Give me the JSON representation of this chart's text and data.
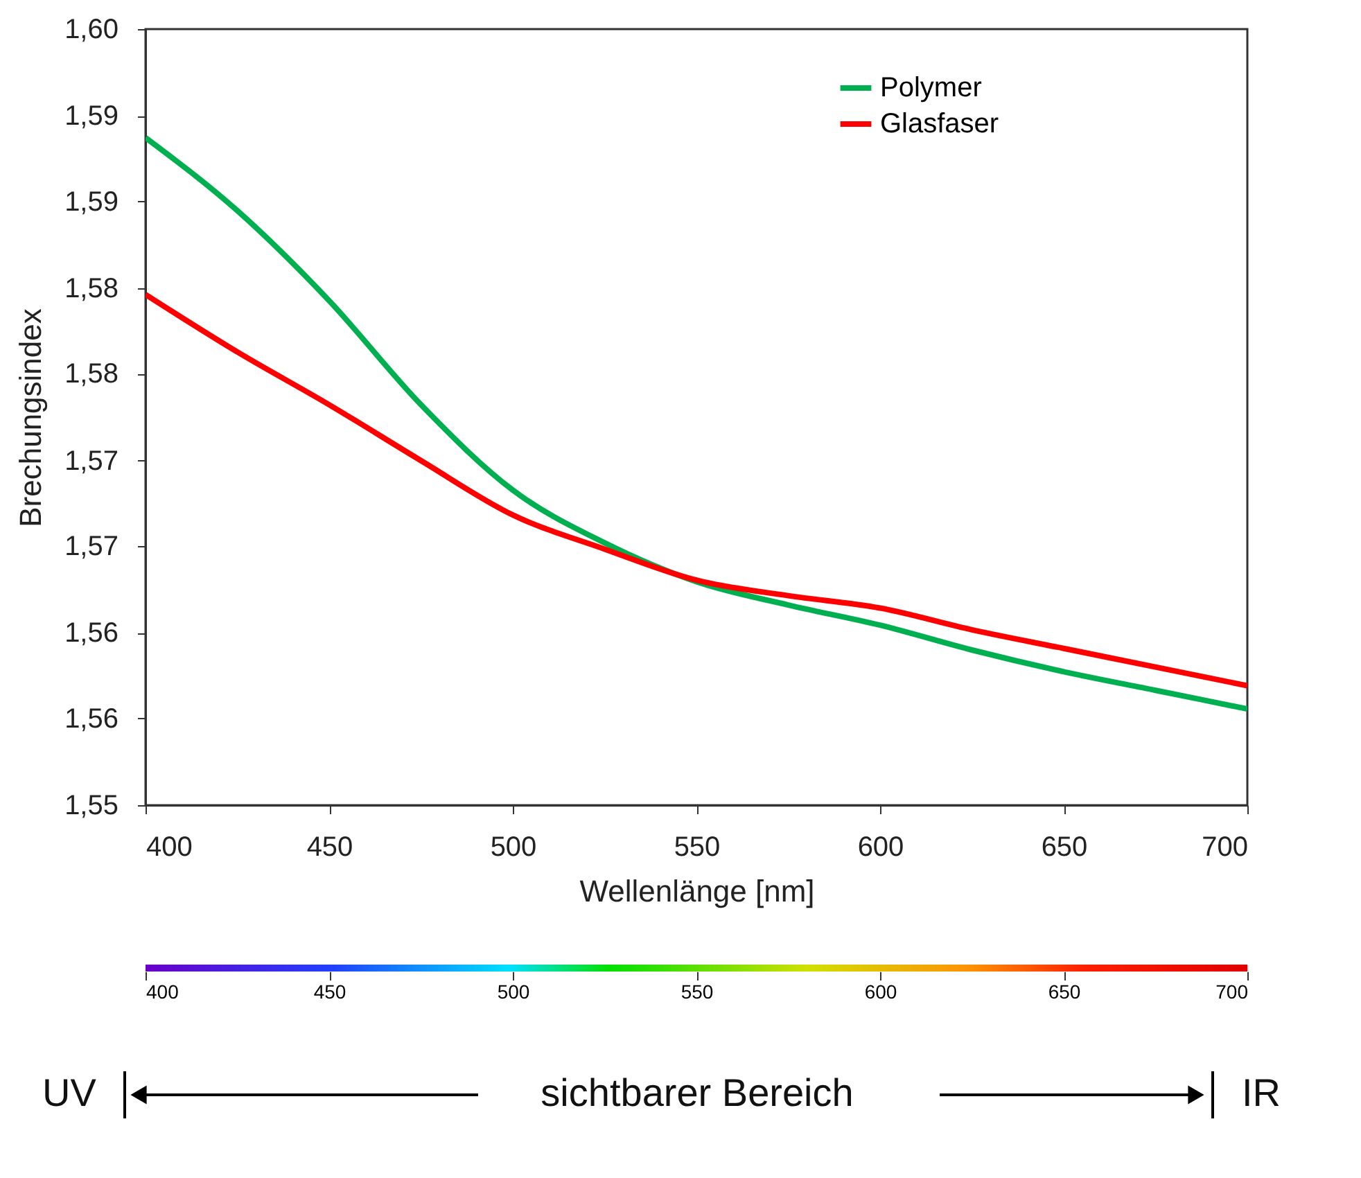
{
  "chart_data": {
    "type": "line",
    "xlabel": "Wellenlänge [nm]",
    "ylabel": "Brechungsindex",
    "x": [
      400,
      425,
      450,
      475,
      500,
      525,
      550,
      575,
      600,
      625,
      650,
      675,
      700
    ],
    "series": [
      {
        "name": "Polymer",
        "color": "#00b050",
        "values": [
          1.593,
          1.5883,
          1.5825,
          1.5758,
          1.5703,
          1.5669,
          1.5644,
          1.5629,
          1.5616,
          1.56,
          1.5586,
          1.5574,
          1.5562
        ]
      },
      {
        "name": "Glasfaser",
        "color": "#ff0000",
        "values": [
          1.5829,
          1.5792,
          1.5758,
          1.5722,
          1.5687,
          1.5665,
          1.5645,
          1.5635,
          1.5627,
          1.5613,
          1.5601,
          1.5589,
          1.5577
        ]
      }
    ],
    "xlim": [
      400,
      700
    ],
    "xticks": [
      400,
      450,
      500,
      550,
      600,
      650,
      700
    ],
    "ylim": [
      1.55,
      1.6
    ],
    "yticks": [
      {
        "value": 1.55,
        "label": "1,55"
      },
      {
        "value": 1.5556,
        "label": "1,56"
      },
      {
        "value": 1.5611,
        "label": "1,56"
      },
      {
        "value": 1.5667,
        "label": "1,57"
      },
      {
        "value": 1.5722,
        "label": "1,57"
      },
      {
        "value": 1.5778,
        "label": "1,58"
      },
      {
        "value": 1.5833,
        "label": "1,58"
      },
      {
        "value": 1.5889,
        "label": "1,59"
      },
      {
        "value": 1.5944,
        "label": "1,59"
      },
      {
        "value": 1.6,
        "label": "1,60"
      }
    ],
    "clim": [
      400,
      700
    ],
    "cticks": [
      400,
      450,
      500,
      550,
      600,
      650,
      700
    ],
    "annotations": [
      "UV",
      "sichtbarer Bereich",
      "IR"
    ],
    "legend": "top right",
    "grid": false,
    "line_style": "solid",
    "marker": "none"
  }
}
